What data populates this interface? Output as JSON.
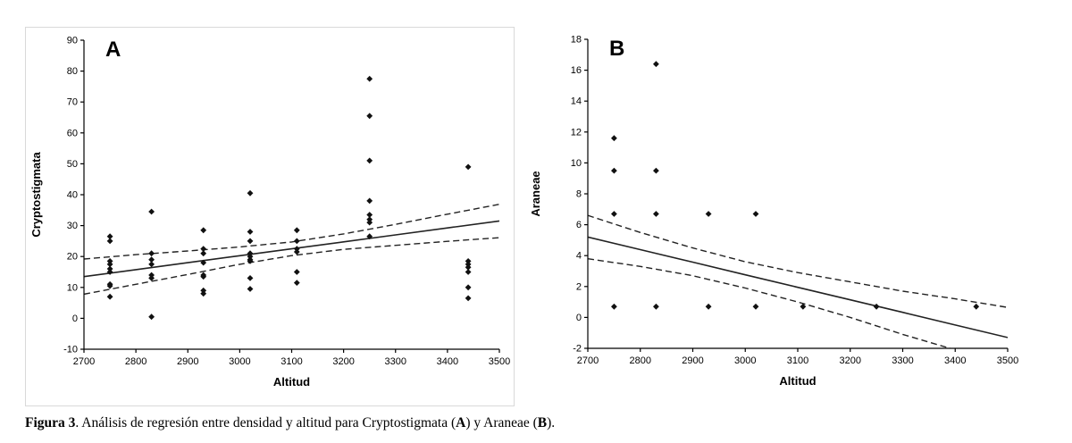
{
  "caption": {
    "bold_prefix": "Figura 3",
    "text_1": ". Análisis de regresión entre densidad y altitud para Cryptostigmata (",
    "bold_a": "A",
    "text_2": ") y Araneae (",
    "bold_b": "B",
    "text_3": ")."
  },
  "chart_data": [
    {
      "type": "scatter",
      "panel_label": "A",
      "xlabel": "Altitud",
      "ylabel": "Cryptostigmata",
      "xlim": [
        2700,
        3500
      ],
      "ylim": [
        -10,
        90
      ],
      "xticks": [
        2700,
        2800,
        2900,
        3000,
        3100,
        3200,
        3300,
        3400,
        3500
      ],
      "yticks": [
        -10,
        0,
        10,
        20,
        30,
        40,
        50,
        60,
        70,
        80,
        90
      ],
      "grid": false,
      "marker": "diamond",
      "marker_color": "#111111",
      "line_color": "#222222",
      "points": [
        [
          2750,
          26.5
        ],
        [
          2750,
          25
        ],
        [
          2750,
          18.5
        ],
        [
          2750,
          17.5
        ],
        [
          2750,
          16
        ],
        [
          2750,
          15
        ],
        [
          2750,
          11
        ],
        [
          2750,
          10.5
        ],
        [
          2750,
          7
        ],
        [
          2830,
          34.5
        ],
        [
          2830,
          21
        ],
        [
          2830,
          19
        ],
        [
          2830,
          17.5
        ],
        [
          2830,
          14
        ],
        [
          2830,
          13
        ],
        [
          2830,
          0.5
        ],
        [
          2930,
          28.5
        ],
        [
          2930,
          22.5
        ],
        [
          2930,
          21
        ],
        [
          2930,
          18
        ],
        [
          2930,
          14
        ],
        [
          2930,
          13.5
        ],
        [
          2930,
          9
        ],
        [
          2930,
          8
        ],
        [
          3020,
          40.5
        ],
        [
          3020,
          28
        ],
        [
          3020,
          25
        ],
        [
          3020,
          21
        ],
        [
          3020,
          20
        ],
        [
          3020,
          19
        ],
        [
          3020,
          18.5
        ],
        [
          3020,
          13
        ],
        [
          3020,
          9.5
        ],
        [
          3110,
          28.5
        ],
        [
          3110,
          25
        ],
        [
          3110,
          22.5
        ],
        [
          3110,
          21.5
        ],
        [
          3110,
          15
        ],
        [
          3110,
          11.5
        ],
        [
          3250,
          77.5
        ],
        [
          3250,
          65.5
        ],
        [
          3250,
          51
        ],
        [
          3250,
          38
        ],
        [
          3250,
          33.5
        ],
        [
          3250,
          32
        ],
        [
          3250,
          31
        ],
        [
          3250,
          26.5
        ],
        [
          3440,
          49
        ],
        [
          3440,
          18.5
        ],
        [
          3440,
          17.5
        ],
        [
          3440,
          16.5
        ],
        [
          3440,
          15
        ],
        [
          3440,
          10
        ],
        [
          3440,
          6.5
        ]
      ],
      "regression_line": {
        "x": [
          2700,
          2800,
          2900,
          3000,
          3100,
          3200,
          3300,
          3400,
          3500
        ],
        "y": [
          13.5,
          15.75,
          18,
          20.25,
          22.5,
          24.75,
          27,
          29.25,
          31.5
        ]
      },
      "ci_upper": {
        "x": [
          2700,
          2800,
          2900,
          3000,
          3100,
          3200,
          3300,
          3400,
          3500
        ],
        "y": [
          19.2,
          20.6,
          21.8,
          23.1,
          24.7,
          27.3,
          30.4,
          33.7,
          36.9
        ]
      },
      "ci_lower": {
        "x": [
          2700,
          2800,
          2900,
          3000,
          3100,
          3200,
          3300,
          3400,
          3500
        ],
        "y": [
          7.8,
          11,
          14.2,
          17.5,
          20.3,
          22.3,
          23.6,
          24.9,
          26.1
        ]
      }
    },
    {
      "type": "scatter",
      "panel_label": "B",
      "xlabel": "Altitud",
      "ylabel": "Araneae",
      "xlim": [
        2700,
        3500
      ],
      "ylim": [
        -2,
        18
      ],
      "xticks": [
        2700,
        2800,
        2900,
        3000,
        3100,
        3200,
        3300,
        3400,
        3500
      ],
      "yticks": [
        -2,
        0,
        2,
        4,
        6,
        8,
        10,
        12,
        14,
        16,
        18
      ],
      "grid": false,
      "marker": "diamond",
      "marker_color": "#111111",
      "line_color": "#222222",
      "points": [
        [
          2750,
          11.6
        ],
        [
          2750,
          9.5
        ],
        [
          2750,
          6.7
        ],
        [
          2750,
          0.7
        ],
        [
          2830,
          16.4
        ],
        [
          2830,
          9.5
        ],
        [
          2830,
          6.7
        ],
        [
          2830,
          0.7
        ],
        [
          2930,
          6.7
        ],
        [
          2930,
          0.7
        ],
        [
          3020,
          6.7
        ],
        [
          3020,
          0.7
        ],
        [
          3110,
          0.7
        ],
        [
          3250,
          0.7
        ],
        [
          3440,
          0.7
        ]
      ],
      "regression_line": {
        "x": [
          2700,
          2800,
          2900,
          3000,
          3100,
          3200,
          3300,
          3400,
          3500
        ],
        "y": [
          5.2,
          4.39,
          3.58,
          2.76,
          1.95,
          1.14,
          0.33,
          -0.49,
          -1.3
        ]
      },
      "ci_upper": {
        "x": [
          2700,
          2800,
          2900,
          3000,
          3100,
          3200,
          3300,
          3400,
          3500
        ],
        "y": [
          6.6,
          5.5,
          4.5,
          3.6,
          2.9,
          2.3,
          1.7,
          1.2,
          0.65
        ]
      },
      "ci_lower": {
        "x": [
          2700,
          2800,
          2900,
          3000,
          3100,
          3200,
          3300,
          3400,
          3500
        ],
        "y": [
          3.8,
          3.3,
          2.7,
          1.9,
          1.0,
          0.0,
          -1.1,
          -2.1,
          -3.25
        ]
      }
    }
  ]
}
